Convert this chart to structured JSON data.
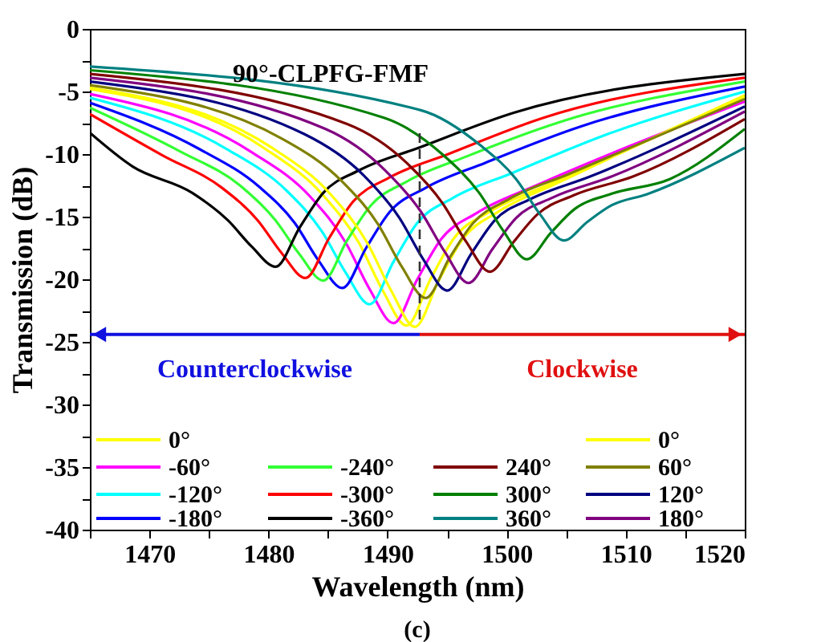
{
  "chart_data": {
    "type": "line",
    "title": "90°-CLPFG-FMF",
    "xlabel": "Wavelength (nm)",
    "ylabel": "Transmission (dB)",
    "xlim": [
      1465,
      1520
    ],
    "ylim": [
      -40,
      0
    ],
    "xticks": [
      {
        "value": 1465,
        "label": null
      },
      1470,
      {
        "value": 1475,
        "label": null
      },
      1480,
      {
        "value": 1485,
        "label": null
      },
      1490,
      {
        "value": 1495,
        "label": null
      },
      1500,
      {
        "value": 1505,
        "label": null
      },
      1510,
      {
        "value": 1515,
        "label": null
      },
      1520
    ],
    "yticks": [
      -40,
      {
        "value": -37.5,
        "label": null
      },
      -35,
      {
        "value": -32.5,
        "label": null
      },
      -30,
      {
        "value": -27.5,
        "label": null
      },
      -25,
      {
        "value": -22.5,
        "label": null
      },
      -20,
      {
        "value": -17.5,
        "label": null
      },
      -15,
      {
        "value": -12.5,
        "label": null
      },
      -10,
      {
        "value": -7.5,
        "label": null
      },
      -5,
      {
        "value": -2.5,
        "label": null
      },
      0
    ],
    "grid": false,
    "legend": "bottom",
    "marker": "none",
    "line_style": "solid",
    "ref_lines": [
      {
        "axis": "x",
        "value": 1492.7,
        "line_style": "dashed",
        "color": "#333333"
      }
    ],
    "annotations": [
      "Counterclockwise",
      "Clockwise",
      "(c)"
    ],
    "series": [
      {
        "name": "0°",
        "color": "#ffff00",
        "x": [
          1465,
          1479.6,
          1484.6,
          1487.6,
          1489.6,
          1491.6,
          1493.6,
          1495.6,
          1498.6,
          1503.6,
          1520
        ],
        "values": [
          -4.8,
          -9.5,
          -13.3,
          -17.1,
          -20.9,
          -23.7,
          -20.0,
          -16.7,
          -14.6,
          -12.4,
          -5.4
        ]
      },
      {
        "name": "-60°",
        "color": "#ff00ff",
        "x": [
          1465,
          1478.5,
          1483.5,
          1486.5,
          1488.5,
          1490.5,
          1492.5,
          1494.5,
          1497.5,
          1502.5,
          1510.5,
          1520
        ],
        "values": [
          -5.2,
          -9.8,
          -13.4,
          -17.1,
          -20.8,
          -23.5,
          -20.0,
          -16.8,
          -14.7,
          -12.5,
          -9.3,
          -5.8
        ]
      },
      {
        "name": "-120°",
        "color": "#00ffff",
        "x": [
          1465,
          1476.5,
          1481.5,
          1484.5,
          1486.5,
          1488.5,
          1490.5,
          1492.5,
          1495.5,
          1500.5,
          1508.5,
          1520
        ],
        "values": [
          -5.5,
          -9.6,
          -12.9,
          -16.2,
          -19.5,
          -22.0,
          -18.6,
          -15.5,
          -13.5,
          -11.5,
          -8.4,
          -5.0
        ]
      },
      {
        "name": "-180°",
        "color": "#0000ff",
        "x": [
          1465,
          1474.2,
          1479.2,
          1482.2,
          1484.2,
          1486.2,
          1488.2,
          1490.2,
          1493.2,
          1498.2,
          1506.2,
          1520
        ],
        "values": [
          -5.9,
          -9.6,
          -12.6,
          -15.5,
          -18.5,
          -20.7,
          -17.5,
          -14.6,
          -12.7,
          -10.7,
          -7.8,
          -4.6
        ]
      },
      {
        "name": "-240°",
        "color": "#33ff33",
        "x": [
          1465,
          1472.6,
          1477.6,
          1480.6,
          1482.6,
          1484.6,
          1486.6,
          1488.6,
          1491.6,
          1496.6,
          1504.6,
          1520
        ],
        "values": [
          -6.3,
          -9.8,
          -12.5,
          -15.3,
          -18.0,
          -20.1,
          -16.9,
          -14.1,
          -12.2,
          -10.2,
          -7.4,
          -4.2
        ]
      },
      {
        "name": "-300°",
        "color": "#ff0000",
        "x": [
          1465,
          1471.1,
          1476.1,
          1479.1,
          1481.1,
          1483.1,
          1485.1,
          1487.1,
          1490.1,
          1495.1,
          1503.1,
          1520
        ],
        "values": [
          -6.8,
          -10.1,
          -12.7,
          -15.3,
          -17.9,
          -19.9,
          -16.7,
          -13.8,
          -11.9,
          -10.0,
          -7.1,
          -3.9
        ]
      },
      {
        "name": "-360°",
        "color": "#000000",
        "x": [
          1465,
          1468.6,
          1473.6,
          1476.6,
          1478.6,
          1480.6,
          1482.6,
          1484.6,
          1487.6,
          1492.6,
          1500.6,
          1520
        ],
        "values": [
          -8.3,
          -11.0,
          -13.1,
          -15.3,
          -17.4,
          -19.0,
          -15.9,
          -13.1,
          -11.3,
          -9.5,
          -6.7,
          -3.6
        ]
      },
      {
        "name": "0°",
        "color": "#ffff00",
        "x": [
          1465,
          1480.3,
          1485.3,
          1488.3,
          1490.3,
          1492.3,
          1494.3,
          1496.3,
          1499.3,
          1504.3,
          1520
        ],
        "values": [
          -4.7,
          -9.5,
          -13.3,
          -17.1,
          -20.9,
          -23.8,
          -20.1,
          -16.8,
          -14.6,
          -12.3,
          -5.3
        ]
      },
      {
        "name": "60°",
        "color": "#808000",
        "x": [
          1465,
          1481.2,
          1486.2,
          1489.2,
          1491.2,
          1493.2,
          1495.2,
          1497.2,
          1500.2,
          1505.2,
          1520
        ],
        "values": [
          -4.5,
          -8.8,
          -12.2,
          -15.6,
          -19.0,
          -21.5,
          -18.3,
          -15.5,
          -13.6,
          -11.6,
          -5.6
        ]
      },
      {
        "name": "120°",
        "color": "#000080",
        "x": [
          1465,
          1483,
          1488,
          1491,
          1493,
          1495,
          1497,
          1499,
          1502,
          1507,
          1520
        ],
        "values": [
          -4.2,
          -8.4,
          -11.7,
          -15.1,
          -18.4,
          -20.9,
          -18.0,
          -15.3,
          -13.6,
          -11.8,
          -6.2
        ]
      },
      {
        "name": "180°",
        "color": "#800080",
        "x": [
          1465,
          1484.8,
          1489.8,
          1492.8,
          1494.8,
          1496.8,
          1498.8,
          1500.8,
          1503.8,
          1508.8,
          1520
        ],
        "values": [
          -3.9,
          -8.0,
          -11.3,
          -14.6,
          -17.8,
          -20.3,
          -17.6,
          -15.1,
          -13.5,
          -11.8,
          -6.6
        ]
      },
      {
        "name": "240°",
        "color": "#800000",
        "x": [
          1465,
          1486.6,
          1491.6,
          1494.6,
          1496.6,
          1498.6,
          1500.6,
          1502.6,
          1505.6,
          1510.6,
          1520
        ],
        "values": [
          -3.6,
          -7.6,
          -10.7,
          -13.9,
          -17.0,
          -19.4,
          -17.0,
          -14.8,
          -13.3,
          -11.8,
          -7.2
        ]
      },
      {
        "name": "300°",
        "color": "#008000",
        "x": [
          1465,
          1489.7,
          1494.7,
          1497.7,
          1499.7,
          1501.7,
          1503.7,
          1505.7,
          1508.7,
          1513.7,
          1520
        ],
        "values": [
          -3.3,
          -7.1,
          -10.1,
          -13.1,
          -16.1,
          -18.4,
          -16.3,
          -14.4,
          -13.2,
          -12.0,
          -8.0
        ]
      },
      {
        "name": "360°",
        "color": "#008080",
        "x": [
          1465,
          1492.8,
          1497.8,
          1500.8,
          1502.8,
          1504.8,
          1506.8,
          1508.8,
          1511.8,
          1520
        ],
        "values": [
          -3.0,
          -6.5,
          -9.3,
          -12.0,
          -14.8,
          -16.9,
          -15.4,
          -14.1,
          -13.2,
          -9.5
        ]
      }
    ]
  }
}
